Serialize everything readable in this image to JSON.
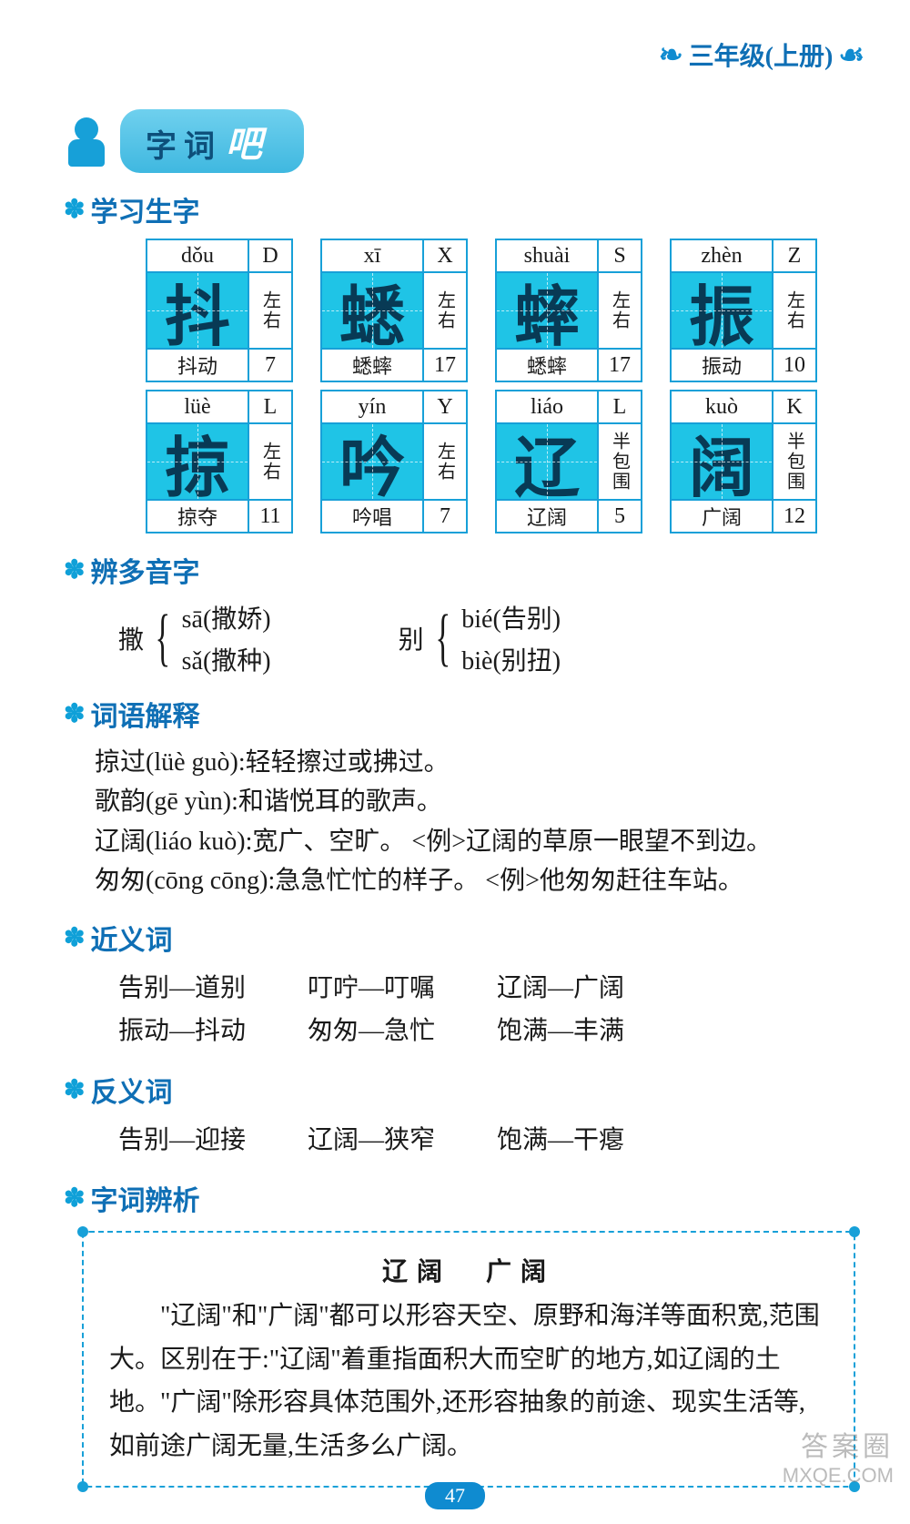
{
  "header": {
    "grade": "三年级(上册)"
  },
  "banner": {
    "title": "字词",
    "accent": "吧"
  },
  "sections": {
    "s1": "学习生字",
    "s2": "辨多音字",
    "s3": "词语解释",
    "s4": "近义词",
    "s5": "反义词",
    "s6": "字词辨析"
  },
  "cards": [
    {
      "pinyin": "dǒu",
      "cap": "D",
      "char": "抖",
      "struct": "左右",
      "word": "抖动",
      "strokes": "7"
    },
    {
      "pinyin": "xī",
      "cap": "X",
      "char": "蟋",
      "struct": "左右",
      "word": "蟋蟀",
      "strokes": "17"
    },
    {
      "pinyin": "shuài",
      "cap": "S",
      "char": "蟀",
      "struct": "左右",
      "word": "蟋蟀",
      "strokes": "17"
    },
    {
      "pinyin": "zhèn",
      "cap": "Z",
      "char": "振",
      "struct": "左右",
      "word": "振动",
      "strokes": "10"
    },
    {
      "pinyin": "lüè",
      "cap": "L",
      "char": "掠",
      "struct": "左右",
      "word": "掠夺",
      "strokes": "11"
    },
    {
      "pinyin": "yín",
      "cap": "Y",
      "char": "吟",
      "struct": "左右",
      "word": "吟唱",
      "strokes": "7"
    },
    {
      "pinyin": "liáo",
      "cap": "L",
      "char": "辽",
      "struct": "半包围",
      "word": "辽阔",
      "strokes": "5"
    },
    {
      "pinyin": "kuò",
      "cap": "K",
      "char": "阔",
      "struct": "半包围",
      "word": "广阔",
      "strokes": "12"
    }
  ],
  "polyphonic": [
    {
      "base": "撒",
      "readings": [
        "sā(撒娇)",
        "sǎ(撒种)"
      ]
    },
    {
      "base": "别",
      "readings": [
        "bié(告别)",
        "biè(别扭)"
      ]
    }
  ],
  "definitions": [
    "掠过(lüè guò):轻轻擦过或拂过。",
    "歌韵(gē yùn):和谐悦耳的歌声。",
    "辽阔(liáo kuò):宽广、空旷。 <例>辽阔的草原一眼望不到边。",
    "匆匆(cōng cōng):急急忙忙的样子。 <例>他匆匆赶往车站。"
  ],
  "synonyms": [
    [
      "告别—道别",
      "叮咛—叮嘱",
      "辽阔—广阔"
    ],
    [
      "振动—抖动",
      "匆匆—急忙",
      "饱满—丰满"
    ]
  ],
  "antonyms": [
    [
      "告别—迎接",
      "辽阔—狭窄",
      "饱满—干瘪"
    ]
  ],
  "analysis": {
    "title": "辽阔　广阔",
    "body": "　　\"辽阔\"和\"广阔\"都可以形容天空、原野和海洋等面积宽,范围大。区别在于:\"辽阔\"着重指面积大而空旷的地方,如辽阔的土地。\"广阔\"除形容具体范围外,还形容抽象的前途、现实生活等,如前途广阔无量,生活多么广阔。"
  },
  "pageNumber": "47",
  "watermark": {
    "line1": "答案圈",
    "line2": "MXQE.COM"
  },
  "colors": {
    "primary": "#0f6fb5",
    "card_bg": "#1fc4e6",
    "border": "#17a0d8"
  }
}
